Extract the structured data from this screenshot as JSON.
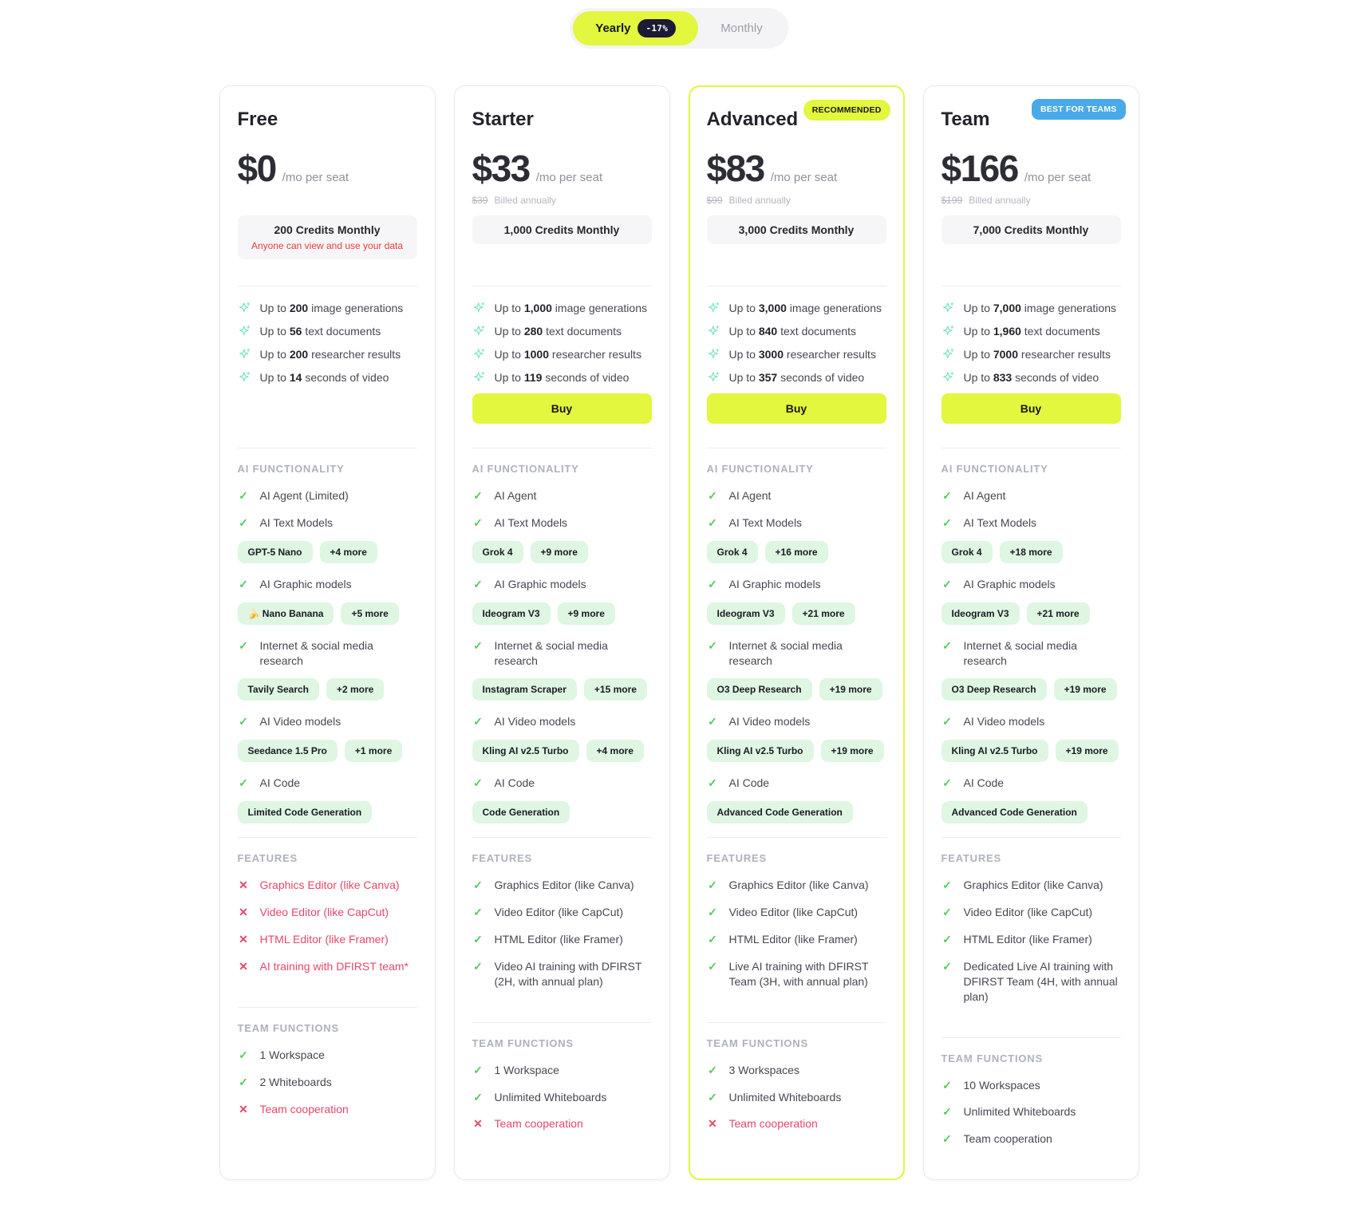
{
  "colors": {
    "accent": "#e2f73d",
    "navy": "#1b1b35",
    "blue": "#4aa9e9",
    "green": "#57c860",
    "red": "#e8476b",
    "mint": "#7be4c0",
    "pillbg": "#def6e2",
    "warnred": "#e5403c"
  },
  "toggle": {
    "yearly": "Yearly",
    "discount": "-17%",
    "monthly": "Monthly"
  },
  "section_titles": {
    "ai": "AI FUNCTIONALITY",
    "features": "FEATURES",
    "team": "TEAM FUNCTIONS"
  },
  "plans": [
    {
      "id": "free",
      "name": "Free",
      "badge": null,
      "price": "$0",
      "per_seat": "/mo per seat",
      "old_price": null,
      "billing_note": null,
      "credits": "200 Credits Monthly",
      "credits_warning": "Anyone can view and use your data",
      "usage": [
        {
          "pre": "Up to ",
          "value": "200",
          "post": " image generations"
        },
        {
          "pre": "Up to ",
          "value": "56",
          "post": " text documents"
        },
        {
          "pre": "Up to ",
          "value": "200",
          "post": " researcher results"
        },
        {
          "pre": "Up to ",
          "value": "14",
          "post": " seconds of video"
        }
      ],
      "buy_label": null,
      "ai_functionality": [
        {
          "label": "AI Agent (Limited)"
        },
        {
          "label": "AI Text Models"
        },
        {
          "pills": [
            "GPT-5 Nano",
            "+4 more"
          ]
        },
        {
          "label": "AI Graphic models"
        },
        {
          "pills": [
            "🍌 Nano Banana",
            "+5 more"
          ]
        },
        {
          "label": "Internet & social media research"
        },
        {
          "pills": [
            "Tavily Search",
            "+2 more"
          ]
        },
        {
          "label": "AI Video models"
        },
        {
          "pills": [
            "Seedance 1.5 Pro",
            "+1 more"
          ]
        },
        {
          "label": "AI Code"
        },
        {
          "pills": [
            "Limited Code Generation"
          ]
        }
      ],
      "features": [
        {
          "label": "Graphics Editor (like Canva)",
          "x": true
        },
        {
          "label": "Video Editor (like CapCut)",
          "x": true
        },
        {
          "label": "HTML Editor (like Framer)",
          "x": true
        },
        {
          "label": "AI training with DFIRST team*",
          "x": true
        }
      ],
      "team_functions": [
        {
          "label": "1 Workspace"
        },
        {
          "label": "2 Whiteboards"
        },
        {
          "label": "Team cooperation",
          "x": true
        }
      ]
    },
    {
      "id": "starter",
      "name": "Starter",
      "badge": null,
      "price": "$33",
      "per_seat": "/mo per seat",
      "old_price": "$39",
      "billing_note": "Billed annually",
      "credits": "1,000 Credits Monthly",
      "credits_warning": null,
      "usage": [
        {
          "pre": "Up to ",
          "value": "1,000",
          "post": " image generations"
        },
        {
          "pre": "Up to ",
          "value": "280",
          "post": " text documents"
        },
        {
          "pre": "Up to ",
          "value": "1000",
          "post": " researcher results"
        },
        {
          "pre": "Up to ",
          "value": "119",
          "post": " seconds of video"
        }
      ],
      "buy_label": "Buy",
      "ai_functionality": [
        {
          "label": "AI Agent"
        },
        {
          "label": "AI Text Models"
        },
        {
          "pills": [
            "Grok 4",
            "+9 more"
          ]
        },
        {
          "label": "AI Graphic models"
        },
        {
          "pills": [
            "Ideogram V3",
            "+9 more"
          ]
        },
        {
          "label": "Internet & social media research"
        },
        {
          "pills": [
            "Instagram Scraper",
            "+15 more"
          ]
        },
        {
          "label": "AI Video models"
        },
        {
          "pills": [
            "Kling AI v2.5 Turbo",
            "+4 more"
          ]
        },
        {
          "label": "AI Code"
        },
        {
          "pills": [
            "Code Generation"
          ]
        }
      ],
      "features": [
        {
          "label": "Graphics Editor (like Canva)"
        },
        {
          "label": "Video Editor (like CapCut)"
        },
        {
          "label": "HTML Editor (like Framer)"
        },
        {
          "label": "Video AI training with DFIRST (2H, with annual plan)"
        }
      ],
      "team_functions": [
        {
          "label": "1 Workspace"
        },
        {
          "label": "Unlimited Whiteboards"
        },
        {
          "label": "Team cooperation",
          "x": true
        }
      ]
    },
    {
      "id": "advanced",
      "name": "Advanced",
      "highlighted": true,
      "badge": {
        "label": "RECOMMENDED",
        "style": "lime"
      },
      "price": "$83",
      "per_seat": "/mo per seat",
      "old_price": "$99",
      "billing_note": "Billed annually",
      "credits": "3,000 Credits Monthly",
      "credits_warning": null,
      "usage": [
        {
          "pre": "Up to ",
          "value": "3,000",
          "post": " image generations"
        },
        {
          "pre": "Up to ",
          "value": "840",
          "post": " text documents"
        },
        {
          "pre": "Up to ",
          "value": "3000",
          "post": " researcher results"
        },
        {
          "pre": "Up to ",
          "value": "357",
          "post": " seconds of video"
        }
      ],
      "buy_label": "Buy",
      "ai_functionality": [
        {
          "label": "AI Agent"
        },
        {
          "label": "AI Text Models"
        },
        {
          "pills": [
            "Grok 4",
            "+16 more"
          ]
        },
        {
          "label": "AI Graphic models"
        },
        {
          "pills": [
            "Ideogram V3",
            "+21 more"
          ]
        },
        {
          "label": "Internet & social media research"
        },
        {
          "pills": [
            "O3 Deep Research",
            "+19 more"
          ]
        },
        {
          "label": "AI Video models"
        },
        {
          "pills": [
            "Kling AI v2.5 Turbo",
            "+19 more"
          ]
        },
        {
          "label": "AI Code"
        },
        {
          "pills": [
            "Advanced Code Generation"
          ]
        }
      ],
      "features": [
        {
          "label": "Graphics Editor (like Canva)"
        },
        {
          "label": "Video Editor (like CapCut)"
        },
        {
          "label": "HTML Editor (like Framer)"
        },
        {
          "label": "Live AI training with DFIRST Team (3H, with annual plan)"
        }
      ],
      "team_functions": [
        {
          "label": "3 Workspaces"
        },
        {
          "label": "Unlimited Whiteboards"
        },
        {
          "label": "Team cooperation",
          "x": true
        }
      ]
    },
    {
      "id": "team",
      "name": "Team",
      "badge": {
        "label": "BEST FOR TEAMS",
        "style": "blue"
      },
      "price": "$166",
      "per_seat": "/mo per seat",
      "old_price": "$199",
      "billing_note": "Billed annually",
      "credits": "7,000 Credits Monthly",
      "credits_warning": null,
      "usage": [
        {
          "pre": "Up to ",
          "value": "7,000",
          "post": " image generations"
        },
        {
          "pre": "Up to ",
          "value": "1,960",
          "post": " text documents"
        },
        {
          "pre": "Up to ",
          "value": "7000",
          "post": " researcher results"
        },
        {
          "pre": "Up to ",
          "value": "833",
          "post": " seconds of video"
        }
      ],
      "buy_label": "Buy",
      "ai_functionality": [
        {
          "label": "AI Agent"
        },
        {
          "label": "AI Text Models"
        },
        {
          "pills": [
            "Grok 4",
            "+18 more"
          ]
        },
        {
          "label": "AI Graphic models"
        },
        {
          "pills": [
            "Ideogram V3",
            "+21 more"
          ]
        },
        {
          "label": "Internet & social media research"
        },
        {
          "pills": [
            "O3 Deep Research",
            "+19 more"
          ]
        },
        {
          "label": "AI Video models"
        },
        {
          "pills": [
            "Kling AI v2.5 Turbo",
            "+19 more"
          ]
        },
        {
          "label": "AI Code"
        },
        {
          "pills": [
            "Advanced Code Generation"
          ]
        }
      ],
      "features": [
        {
          "label": "Graphics Editor (like Canva)"
        },
        {
          "label": "Video Editor (like CapCut)"
        },
        {
          "label": "HTML Editor (like Framer)"
        },
        {
          "label": "Dedicated Live AI training with DFIRST Team (4H, with annual plan)"
        }
      ],
      "team_functions": [
        {
          "label": "10 Workspaces"
        },
        {
          "label": "Unlimited Whiteboards"
        },
        {
          "label": "Team cooperation"
        }
      ]
    }
  ]
}
